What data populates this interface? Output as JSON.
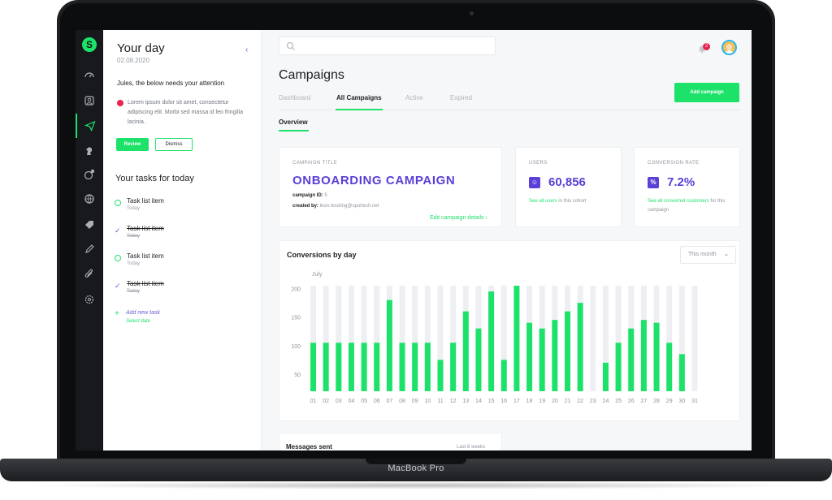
{
  "device": {
    "brand": "MacBook Pro"
  },
  "rail": {
    "logo": "S",
    "items": [
      "dashboard-icon",
      "contacts-icon",
      "campaigns-icon",
      "segments-icon",
      "rewards-icon",
      "analytics-icon",
      "tags-icon",
      "edit-icon",
      "attachments-icon",
      "settings-icon"
    ],
    "active": "campaigns-icon"
  },
  "day": {
    "title": "Your day",
    "date": "02.08.2020",
    "attention": "Jules, the below needs your attention",
    "alert_text": "Lorem ipsum dolor sit amet, consectetur adipiscing elit. Morbi sed massa id leo fringilla lacinia.",
    "review_label": "Review",
    "dismiss_label": "Dismiss",
    "tasks_title": "Your tasks for today",
    "tasks": [
      {
        "name": "Task list item",
        "due": "Today",
        "done": false
      },
      {
        "name": "Task list item",
        "due": "Today",
        "done": true
      },
      {
        "name": "Task list item",
        "due": "Today",
        "done": false
      },
      {
        "name": "Task list item",
        "due": "Today",
        "done": true
      }
    ],
    "add_task": "Add new task",
    "select_date": "Select date"
  },
  "header": {
    "search_placeholder": "",
    "notification_count": "2"
  },
  "page": {
    "title": "Campaigns",
    "tabs": [
      "Dashboard",
      "All Campaigns",
      "Active",
      "Expired"
    ],
    "active_tab": "All Campaigns",
    "add_campaign": "Add campaign",
    "subtab": "Overview"
  },
  "campaign": {
    "label": "CAMPAIGN TITLE",
    "name": "ONBOARDING CAMPAIGN",
    "id_label": "campaign ID:",
    "id_value": "5",
    "created_label": "created by:",
    "created_value": "leon.hosking@sportech.net",
    "edit_link": "Edit campaign details"
  },
  "users": {
    "label": "USERS",
    "value": "60,856",
    "link": "See all users",
    "note": "in this cohort"
  },
  "conversion": {
    "label": "CONVERSION RATE",
    "value": "7.2%",
    "link": "See all converted customers",
    "note": "for this campaign"
  },
  "chart": {
    "title": "Conversions by day",
    "filter": "This month",
    "accent": "#1de26a",
    "track": "#eeeff3"
  },
  "chart_data": {
    "type": "bar",
    "title": "Conversions by day",
    "subtitle": "July",
    "categories": [
      "01",
      "02",
      "03",
      "04",
      "05",
      "06",
      "07",
      "08",
      "09",
      "10",
      "11",
      "12",
      "13",
      "14",
      "15",
      "16",
      "17",
      "18",
      "19",
      "20",
      "21",
      "22",
      "23",
      "24",
      "25",
      "26",
      "27",
      "28",
      "29",
      "30",
      "31"
    ],
    "values": [
      105,
      105,
      105,
      105,
      105,
      105,
      180,
      105,
      105,
      105,
      75,
      105,
      160,
      130,
      195,
      75,
      205,
      140,
      130,
      145,
      160,
      175,
      20,
      70,
      105,
      130,
      145,
      140,
      105,
      85,
      0
    ],
    "y_ticks": [
      50,
      100,
      150,
      200
    ],
    "ylim": [
      20,
      205
    ]
  },
  "messages": {
    "title": "Messages sent",
    "period": "Last 8 weeks"
  }
}
